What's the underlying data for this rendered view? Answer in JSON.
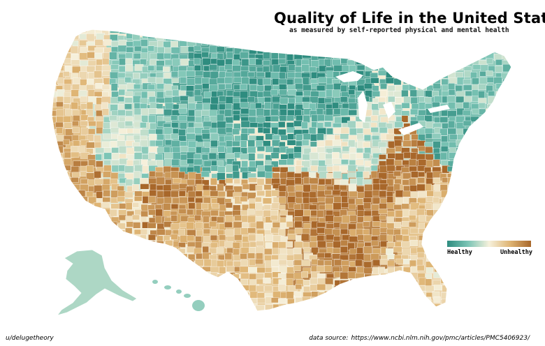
{
  "header": {
    "title": "Quality of Life in the United States",
    "subtitle": "as measured by self-reported physical and mental health"
  },
  "legend": {
    "low_label": "Healthy",
    "high_label": "Unhealthy",
    "colors": [
      "#2e8c7f",
      "#7cc5b6",
      "#f6f1dc",
      "#dfb574",
      "#a8672a"
    ]
  },
  "footer": {
    "credit": "u/delugetheory",
    "source_label": "data source:",
    "source_url": "https://www.ncbi.nlm.nih.gov/pmc/articles/PMC5406923/"
  },
  "map": {
    "type": "choropleth",
    "level": "county",
    "region_values": [
      {
        "region": "northwest-coast",
        "value": 0.62
      },
      {
        "region": "california-north",
        "value": 0.74
      },
      {
        "region": "california-central",
        "value": 0.82
      },
      {
        "region": "california-south",
        "value": 0.7
      },
      {
        "region": "nevada-utah",
        "value": 0.4
      },
      {
        "region": "idaho-montana-west",
        "value": 0.3
      },
      {
        "region": "northern-plains",
        "value": 0.08
      },
      {
        "region": "upper-midwest",
        "value": 0.12
      },
      {
        "region": "colorado-wyoming",
        "value": 0.18
      },
      {
        "region": "four-corners",
        "value": 0.9
      },
      {
        "region": "new-mexico",
        "value": 0.78
      },
      {
        "region": "texas-west",
        "value": 0.72
      },
      {
        "region": "texas-east",
        "value": 0.66
      },
      {
        "region": "deep-south",
        "value": 0.93
      },
      {
        "region": "appalachia",
        "value": 0.98
      },
      {
        "region": "southeast-coast",
        "value": 0.7
      },
      {
        "region": "florida",
        "value": 0.62
      },
      {
        "region": "great-lakes",
        "value": 0.42
      },
      {
        "region": "northeast",
        "value": 0.2
      },
      {
        "region": "new-england",
        "value": 0.28
      },
      {
        "region": "alaska",
        "value": 0.35
      },
      {
        "region": "hawaii",
        "value": 0.3
      }
    ]
  }
}
